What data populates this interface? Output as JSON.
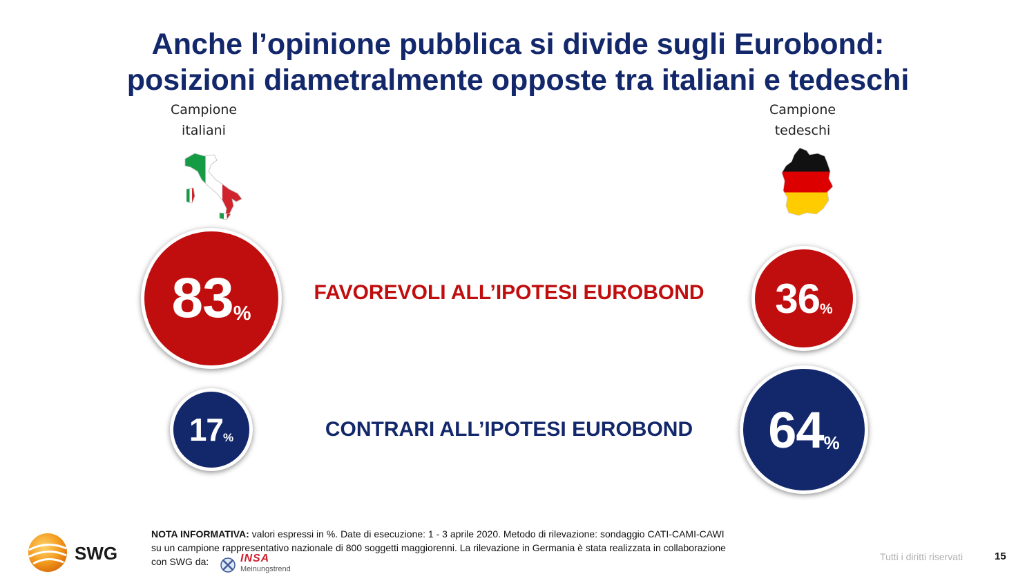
{
  "title": {
    "line1": "Anche l’opinione pubblica si divide sugli Eurobond:",
    "line2": "posizioni diametralmente opposte tra italiani e tedeschi"
  },
  "samples": {
    "italy": {
      "line1": "Campione",
      "line2": "italiani"
    },
    "germany": {
      "line1": "Campione",
      "line2": "tedeschi"
    }
  },
  "chart_data": {
    "type": "bubble",
    "categories": [
      "FAVOREVOLI ALL’IPOTESI EUROBOND",
      "CONTRARI ALL’IPOTESI EUROBOND"
    ],
    "series": [
      {
        "name": "Campione italiani",
        "values": [
          83,
          17
        ]
      },
      {
        "name": "Campione tedeschi",
        "values": [
          36,
          64
        ]
      }
    ],
    "unit": "%",
    "colors": {
      "favorevoli": "#c00d0d",
      "contrari": "#13276b"
    }
  },
  "labels": {
    "favorevoli": "FAVOREVOLI ALL’IPOTESI EUROBOND",
    "contrari": "CONTRARI ALL’IPOTESI EUROBOND"
  },
  "values": {
    "it_fav": "83",
    "de_fav": "36",
    "it_con": "17",
    "de_con": "64",
    "pct": "%"
  },
  "note": {
    "label": "NOTA INFORMATIVA:",
    "text1": " valori espressi in %. Date di esecuzione: 1 - 3 aprile 2020. Metodo di rilevazione: sondaggio CATI-CAMI-CAWI",
    "text2": "su un campione rappresentativo nazionale di 800 soggetti maggiorenni. La rilevazione in Germania è stata realizzata in collaborazione",
    "text3": "con SWG da:"
  },
  "footer": {
    "rights": "Tutti i diritti riservati",
    "page": "15",
    "brand": "SWG",
    "partner": "INSA",
    "partner_sub": "Meinungstrend"
  }
}
